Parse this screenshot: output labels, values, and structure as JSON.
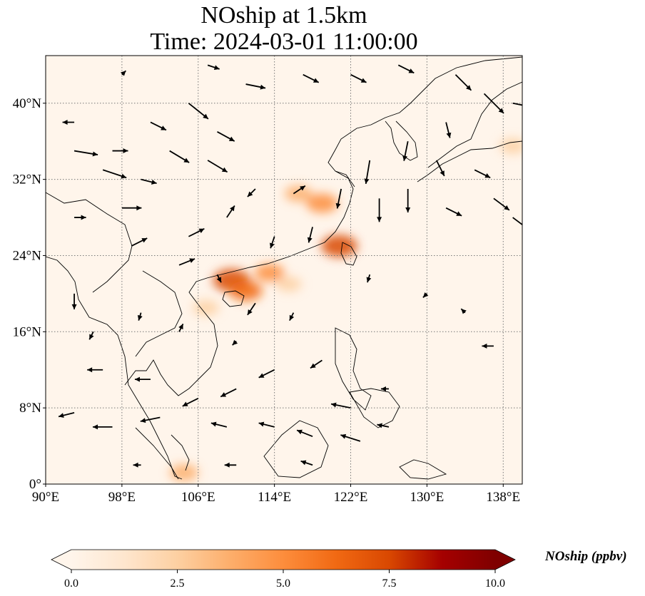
{
  "title": {
    "line1": "NOship at 1.5km",
    "line2": "Time: 2024-03-01 11:00:00"
  },
  "map": {
    "extent": {
      "lon_min": 90,
      "lon_max": 140,
      "lat_min": 0,
      "lat_max": 45
    },
    "lon_ticks": [
      {
        "value": 90,
        "label": "90°E"
      },
      {
        "value": 98,
        "label": "98°E"
      },
      {
        "value": 106,
        "label": "106°E"
      },
      {
        "value": 114,
        "label": "114°E"
      },
      {
        "value": 122,
        "label": "122°E"
      },
      {
        "value": 130,
        "label": "130°E"
      },
      {
        "value": 138,
        "label": "138°E"
      }
    ],
    "lat_ticks": [
      {
        "value": 0,
        "label": "0°"
      },
      {
        "value": 8,
        "label": "8°N"
      },
      {
        "value": 16,
        "label": "16°N"
      },
      {
        "value": 24,
        "label": "24°N"
      },
      {
        "value": 32,
        "label": "32°N"
      },
      {
        "value": 40,
        "label": "40°N"
      }
    ],
    "gridlines": true,
    "background_color": "#fff5eb",
    "hotspots": [
      {
        "lon": 109.5,
        "lat": 21.4,
        "level": 8.0
      },
      {
        "lon": 111.0,
        "lat": 20.3,
        "level": 6.0
      },
      {
        "lon": 113.5,
        "lat": 22.2,
        "level": 4.5
      },
      {
        "lon": 120.8,
        "lat": 25.0,
        "level": 7.5
      },
      {
        "lon": 119.0,
        "lat": 29.5,
        "level": 5.5
      },
      {
        "lon": 116.5,
        "lat": 30.5,
        "level": 3.5
      },
      {
        "lon": 106.8,
        "lat": 18.5,
        "level": 3.0
      },
      {
        "lon": 104.5,
        "lat": 1.2,
        "level": 4.0
      },
      {
        "lon": 115.5,
        "lat": 21.0,
        "level": 2.5
      },
      {
        "lon": 139.0,
        "lat": 35.5,
        "level": 3.0
      }
    ],
    "wind_vectors": [
      {
        "lon": 93,
        "lat": 38,
        "u": -1.5,
        "v": 0
      },
      {
        "lon": 93,
        "lat": 35,
        "u": 3,
        "v": -0.5
      },
      {
        "lon": 97,
        "lat": 35,
        "u": 2,
        "v": 0
      },
      {
        "lon": 96,
        "lat": 33,
        "u": 3,
        "v": -1
      },
      {
        "lon": 100,
        "lat": 32,
        "u": 2,
        "v": -0.5
      },
      {
        "lon": 103,
        "lat": 35,
        "u": 2.5,
        "v": -1.5
      },
      {
        "lon": 107,
        "lat": 34,
        "u": 2.5,
        "v": -1.5
      },
      {
        "lon": 108,
        "lat": 37,
        "u": 2.2,
        "v": -1.2
      },
      {
        "lon": 101,
        "lat": 38,
        "u": 2,
        "v": -1
      },
      {
        "lon": 105,
        "lat": 40,
        "u": 2.5,
        "v": -2
      },
      {
        "lon": 111,
        "lat": 42,
        "u": 2.5,
        "v": -0.5
      },
      {
        "lon": 117,
        "lat": 43,
        "u": 2,
        "v": -1
      },
      {
        "lon": 122,
        "lat": 43,
        "u": 2,
        "v": -1
      },
      {
        "lon": 127,
        "lat": 44,
        "u": 2,
        "v": -1
      },
      {
        "lon": 133,
        "lat": 43,
        "u": 2,
        "v": -2
      },
      {
        "lon": 136,
        "lat": 41,
        "u": 2.5,
        "v": -2.5
      },
      {
        "lon": 139,
        "lat": 40,
        "u": 2.5,
        "v": -0.5
      },
      {
        "lon": 132,
        "lat": 38,
        "u": 0.5,
        "v": -2
      },
      {
        "lon": 128,
        "lat": 36,
        "u": -0.5,
        "v": -2.5
      },
      {
        "lon": 124,
        "lat": 34,
        "u": -0.5,
        "v": -3
      },
      {
        "lon": 125,
        "lat": 30,
        "u": 0,
        "v": -3
      },
      {
        "lon": 128,
        "lat": 31,
        "u": 0,
        "v": -3
      },
      {
        "lon": 131,
        "lat": 34,
        "u": 1,
        "v": -2
      },
      {
        "lon": 135,
        "lat": 33,
        "u": 2,
        "v": -1
      },
      {
        "lon": 137,
        "lat": 30,
        "u": 2,
        "v": -1.5
      },
      {
        "lon": 132,
        "lat": 29,
        "u": 2,
        "v": -1
      },
      {
        "lon": 139,
        "lat": 28,
        "u": 2,
        "v": -1.5
      },
      {
        "lon": 121,
        "lat": 31,
        "u": -0.5,
        "v": -2.5
      },
      {
        "lon": 118,
        "lat": 27,
        "u": -0.5,
        "v": -2
      },
      {
        "lon": 114,
        "lat": 26,
        "u": -0.5,
        "v": -1.5
      },
      {
        "lon": 109,
        "lat": 28,
        "u": 1,
        "v": 1.5
      },
      {
        "lon": 105,
        "lat": 26,
        "u": 2,
        "v": 1
      },
      {
        "lon": 99,
        "lat": 25,
        "u": 2,
        "v": 1
      },
      {
        "lon": 104,
        "lat": 23,
        "u": 2,
        "v": 0.8
      },
      {
        "lon": 98,
        "lat": 29,
        "u": 2.5,
        "v": 0
      },
      {
        "lon": 93,
        "lat": 28,
        "u": 1.5,
        "v": 0
      },
      {
        "lon": 93,
        "lat": 20,
        "u": 0,
        "v": -2
      },
      {
        "lon": 112,
        "lat": 19,
        "u": -1,
        "v": -1.5
      },
      {
        "lon": 116,
        "lat": 18,
        "u": -0.5,
        "v": -1
      },
      {
        "lon": 124,
        "lat": 22,
        "u": -0.3,
        "v": -1
      },
      {
        "lon": 130,
        "lat": 20,
        "u": -0.5,
        "v": -0.5
      },
      {
        "lon": 134,
        "lat": 18,
        "u": -0.5,
        "v": 0.5
      },
      {
        "lon": 137,
        "lat": 14.5,
        "u": -1.5,
        "v": 0
      },
      {
        "lon": 126,
        "lat": 10,
        "u": -1,
        "v": 0
      },
      {
        "lon": 119,
        "lat": 13,
        "u": -1.5,
        "v": -1
      },
      {
        "lon": 114,
        "lat": 12,
        "u": -2,
        "v": -1
      },
      {
        "lon": 110,
        "lat": 10,
        "u": -2,
        "v": -1
      },
      {
        "lon": 106,
        "lat": 9,
        "u": -2,
        "v": -1
      },
      {
        "lon": 102,
        "lat": 7,
        "u": -2.5,
        "v": -0.5
      },
      {
        "lon": 97,
        "lat": 6,
        "u": -2.5,
        "v": 0
      },
      {
        "lon": 93,
        "lat": 7.5,
        "u": -2,
        "v": -0.5
      },
      {
        "lon": 96,
        "lat": 12,
        "u": -2,
        "v": 0
      },
      {
        "lon": 101,
        "lat": 11,
        "u": -2,
        "v": 0
      },
      {
        "lon": 109,
        "lat": 6,
        "u": -2,
        "v": 0.5
      },
      {
        "lon": 114,
        "lat": 6,
        "u": -2,
        "v": 0.5
      },
      {
        "lon": 118,
        "lat": 5,
        "u": -2,
        "v": 0.8
      },
      {
        "lon": 123,
        "lat": 4.5,
        "u": -2.5,
        "v": 0.8
      },
      {
        "lon": 122,
        "lat": 8,
        "u": -2.5,
        "v": 0.5
      },
      {
        "lon": 126,
        "lat": 6,
        "u": -1.5,
        "v": 0.3
      },
      {
        "lon": 110,
        "lat": 2,
        "u": -1.5,
        "v": 0
      },
      {
        "lon": 100,
        "lat": 2,
        "u": -1,
        "v": 0
      },
      {
        "lon": 118,
        "lat": 2,
        "u": -1.5,
        "v": 0.5
      },
      {
        "lon": 116,
        "lat": 30.5,
        "u": 1.5,
        "v": 1
      },
      {
        "lon": 112,
        "lat": 31,
        "u": -1,
        "v": -1
      },
      {
        "lon": 108,
        "lat": 22,
        "u": 0.5,
        "v": -1
      },
      {
        "lon": 104,
        "lat": 16,
        "u": 0.5,
        "v": 1
      },
      {
        "lon": 100,
        "lat": 18,
        "u": -0.3,
        "v": -1
      },
      {
        "lon": 110,
        "lat": 15,
        "u": -0.5,
        "v": -0.5
      },
      {
        "lon": 95,
        "lat": 16,
        "u": -0.5,
        "v": -1
      },
      {
        "lon": 107,
        "lat": 44,
        "u": 1.5,
        "v": -0.5
      },
      {
        "lon": 98,
        "lat": 43,
        "u": 0.5,
        "v": 0.5
      }
    ]
  },
  "colorbar": {
    "label": "NOship (ppbv)",
    "vmin": 0.0,
    "vmax": 10.0,
    "ticks": [
      {
        "value": 0.0,
        "label": "0.0"
      },
      {
        "value": 2.5,
        "label": "2.5"
      },
      {
        "value": 5.0,
        "label": "5.0"
      },
      {
        "value": 7.5,
        "label": "7.5"
      },
      {
        "value": 10.0,
        "label": "10.0"
      }
    ],
    "colormap": [
      "#fff5eb",
      "#fee6ce",
      "#fdd0a2",
      "#fdae6b",
      "#fd8d3c",
      "#f16913",
      "#d94801",
      "#a50000",
      "#7f0000"
    ],
    "extend": "both"
  }
}
